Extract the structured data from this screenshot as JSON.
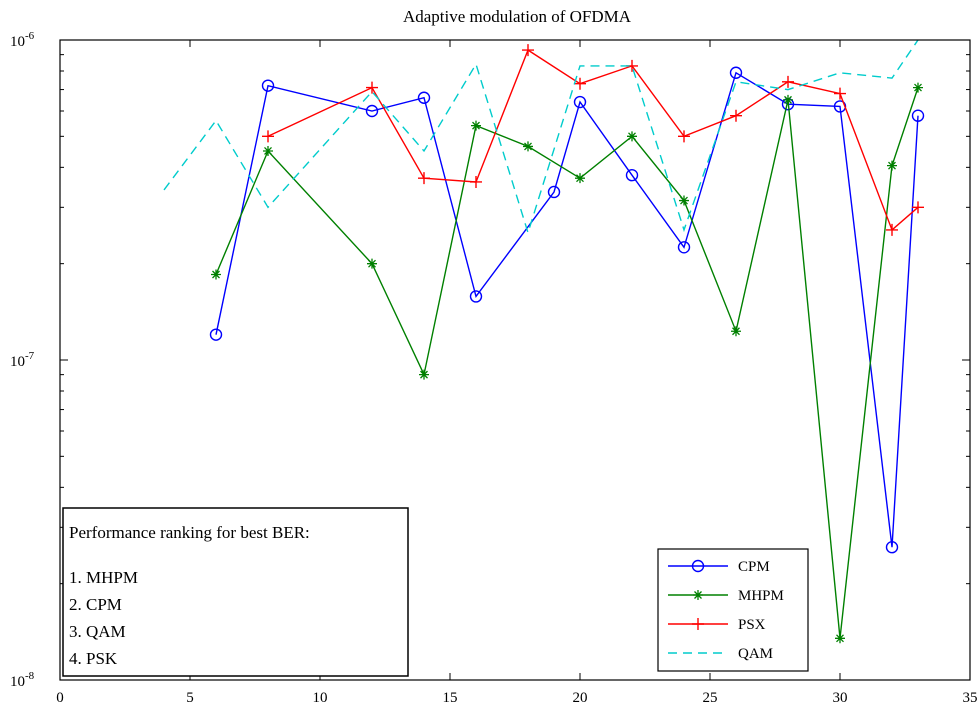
{
  "chart_data": {
    "type": "line",
    "title": "Adaptive modulation of OFDMA",
    "xlabel": "",
    "ylabel": "",
    "xlim": [
      0,
      35
    ],
    "ylim": [
      1e-08,
      1e-06
    ],
    "yscale": "log",
    "xticks": [
      0,
      5,
      10,
      15,
      20,
      25,
      30,
      35
    ],
    "yticks": [
      {
        "value": 1e-08,
        "base": "10",
        "exp": "-8"
      },
      {
        "value": 1e-07,
        "base": "10",
        "exp": "-7"
      },
      {
        "value": 1e-06,
        "base": "10",
        "exp": "-6"
      }
    ],
    "grid": false,
    "legend_position": "bottom-right",
    "series": [
      {
        "name": "CPM",
        "color": "#0000ff",
        "marker": "circle",
        "linestyle": "solid",
        "x": [
          6,
          8,
          12,
          14,
          16,
          19,
          20,
          22,
          24,
          26,
          28,
          30,
          32,
          33
        ],
        "y": [
          1.2e-07,
          7.2e-07,
          6e-07,
          6.6e-07,
          1.58e-07,
          3.35e-07,
          6.4e-07,
          3.78e-07,
          2.25e-07,
          7.9e-07,
          6.3e-07,
          6.2e-07,
          2.6e-08,
          5.8e-07
        ]
      },
      {
        "name": "MHPM",
        "color": "#008000",
        "marker": "star",
        "linestyle": "solid",
        "x": [
          6,
          8,
          12,
          14,
          16,
          18,
          20,
          22,
          24,
          26,
          28,
          30,
          32,
          33
        ],
        "y": [
          1.85e-07,
          4.5e-07,
          2e-07,
          9e-08,
          5.4e-07,
          4.65e-07,
          3.7e-07,
          5e-07,
          3.15e-07,
          1.23e-07,
          6.5e-07,
          1.35e-08,
          4.05e-07,
          7.1e-07
        ]
      },
      {
        "name": "PSX",
        "color": "#ff0000",
        "marker": "plus",
        "linestyle": "solid",
        "x": [
          8,
          12,
          14,
          16,
          18,
          20,
          22,
          24,
          26,
          28,
          30,
          32,
          33
        ],
        "y": [
          5e-07,
          7.1e-07,
          3.7e-07,
          3.6e-07,
          9.3e-07,
          7.3e-07,
          8.3e-07,
          5e-07,
          5.8e-07,
          7.4e-07,
          6.8e-07,
          2.55e-07,
          3e-07
        ]
      },
      {
        "name": "QAM",
        "color": "#00cccc",
        "marker": "none",
        "linestyle": "dashed",
        "x": [
          4,
          6,
          8,
          12,
          14,
          16,
          18,
          20,
          22,
          24,
          26,
          28,
          30,
          32,
          33
        ],
        "y": [
          3.4e-07,
          5.6e-07,
          3e-07,
          6.9e-07,
          4.5e-07,
          8.4e-07,
          2.5e-07,
          8.3e-07,
          8.3e-07,
          2.55e-07,
          7.4e-07,
          7e-07,
          7.9e-07,
          7.6e-07,
          1e-06
        ]
      }
    ],
    "annotation": {
      "heading": "Performance ranking for best BER:",
      "items": [
        "1. MHPM",
        "2. CPM",
        "3. QAM",
        "4. PSK"
      ]
    }
  }
}
